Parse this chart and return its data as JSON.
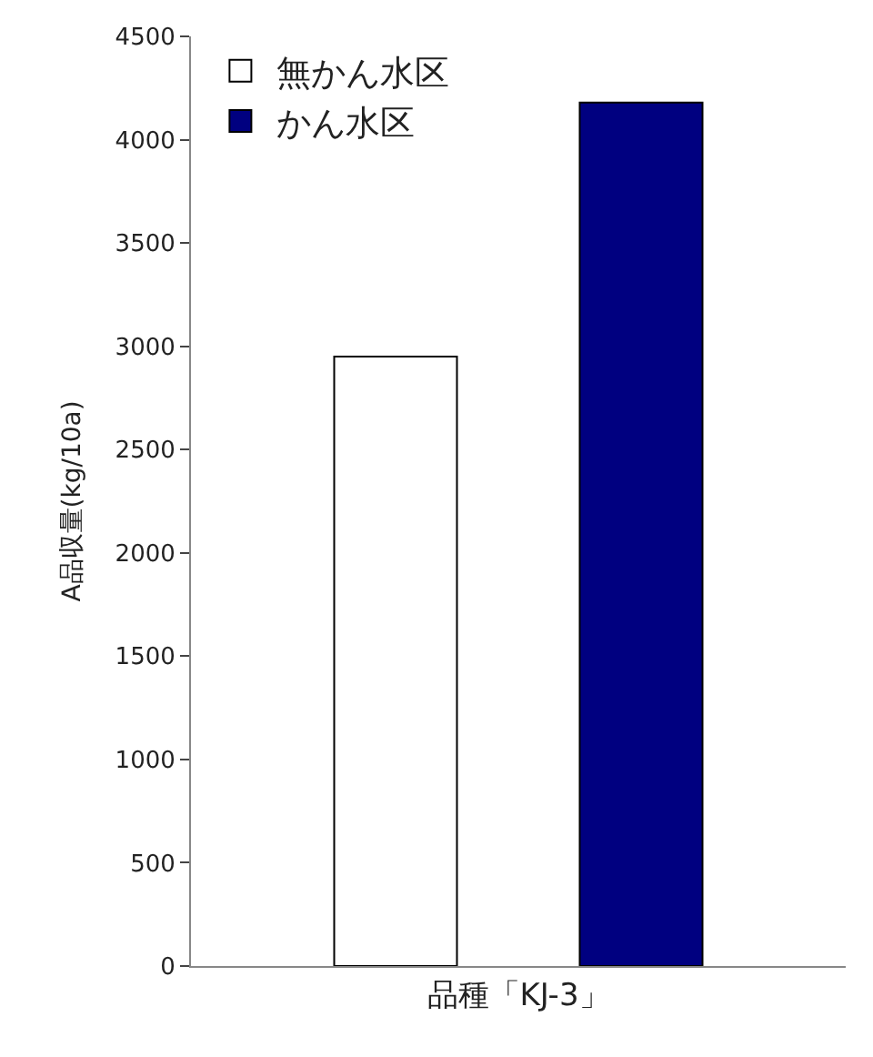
{
  "chart_data": {
    "type": "bar",
    "categories": [
      "品種「KJ-3」"
    ],
    "ylabel": "A品収量(kg/10a)",
    "series": [
      {
        "name": "無かん水区",
        "color": "#ffffff",
        "values": [
          2950
        ]
      },
      {
        "name": "かん水区",
        "color": "#000080",
        "values": [
          4180
        ]
      }
    ],
    "ylim": [
      0,
      4500
    ],
    "yticks": [
      0,
      500,
      1000,
      1500,
      2000,
      2500,
      3000,
      3500,
      4000,
      4500
    ],
    "legend": "top left"
  }
}
